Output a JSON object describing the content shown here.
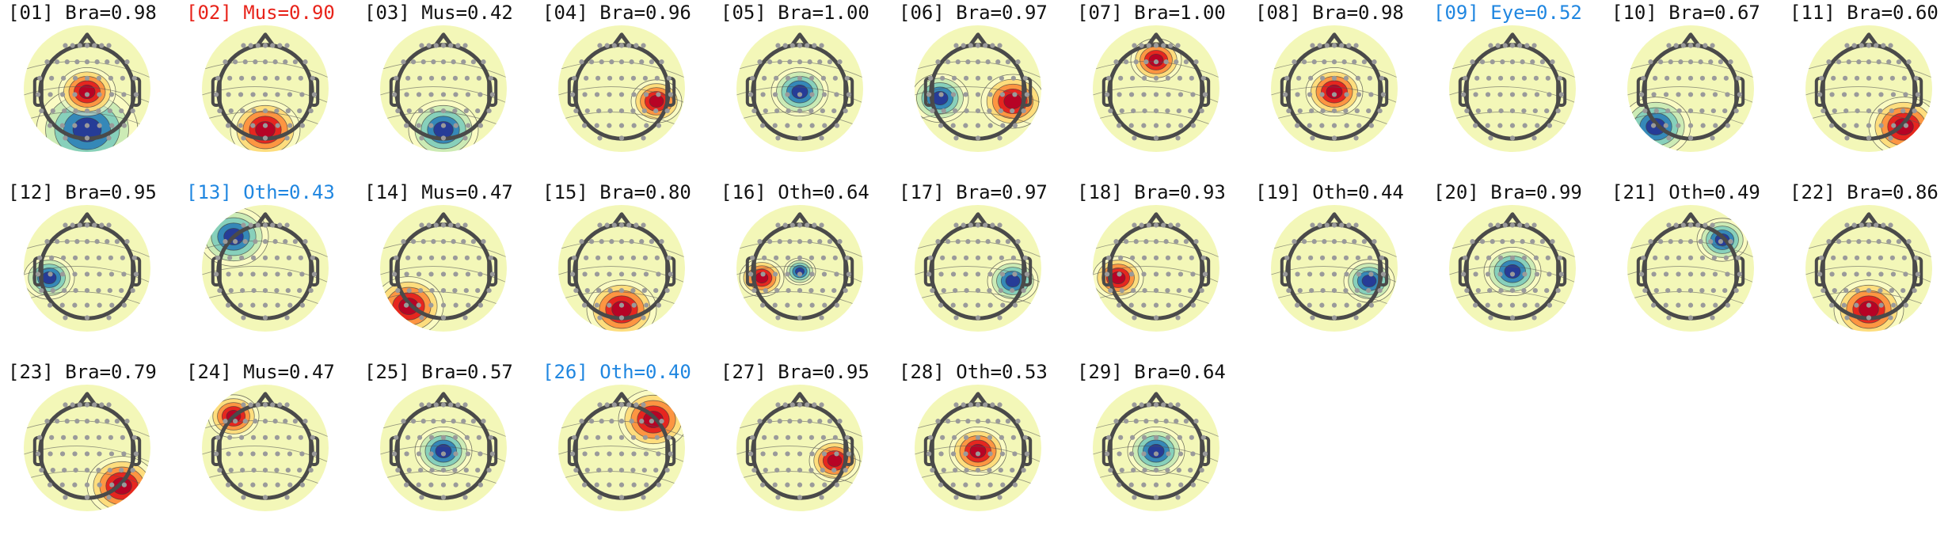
{
  "components": [
    {
      "label": "[01] Bra=0.98",
      "color": "#111111",
      "pattern": {
        "type": "dipole",
        "pos": "center",
        "hot": "center"
      }
    },
    {
      "label": "[02] Mus=0.90",
      "color": "#e8231a",
      "pattern": {
        "type": "edge",
        "side": "bottom",
        "pole": "hot"
      }
    },
    {
      "label": "[03] Mus=0.42",
      "color": "#111111",
      "pattern": {
        "type": "edge",
        "side": "bottom",
        "pole": "cold"
      }
    },
    {
      "label": "[04] Bra=0.96",
      "color": "#111111",
      "pattern": {
        "type": "spot",
        "side": "right",
        "pole": "hot"
      }
    },
    {
      "label": "[05] Bra=1.00",
      "color": "#111111",
      "pattern": {
        "type": "spot",
        "side": "center",
        "pole": "cold"
      }
    },
    {
      "label": "[06] Bra=0.97",
      "color": "#111111",
      "pattern": {
        "type": "lateral",
        "pole": "mixed"
      }
    },
    {
      "label": "[07] Bra=1.00",
      "color": "#111111",
      "pattern": {
        "type": "spot",
        "side": "top",
        "pole": "hot"
      }
    },
    {
      "label": "[08] Bra=0.98",
      "color": "#111111",
      "pattern": {
        "type": "spot",
        "side": "center",
        "pole": "hot"
      }
    },
    {
      "label": "[09] Eye=0.52",
      "color": "#1f86e0",
      "pattern": {
        "type": "flat"
      }
    },
    {
      "label": "[10] Bra=0.67",
      "color": "#111111",
      "pattern": {
        "type": "edge",
        "side": "bottom-left",
        "pole": "cold"
      }
    },
    {
      "label": "[11] Bra=0.60",
      "color": "#111111",
      "pattern": {
        "type": "edge",
        "side": "bottom-right",
        "pole": "hot"
      }
    },
    {
      "label": "[12] Bra=0.95",
      "color": "#111111",
      "pattern": {
        "type": "spot",
        "side": "left",
        "pole": "cold"
      }
    },
    {
      "label": "[13] Oth=0.43",
      "color": "#1f86e0",
      "pattern": {
        "type": "edge",
        "side": "top-left",
        "pole": "cold"
      }
    },
    {
      "label": "[14] Mus=0.47",
      "color": "#111111",
      "pattern": {
        "type": "edge",
        "side": "bottom-left",
        "pole": "hot"
      }
    },
    {
      "label": "[15] Bra=0.80",
      "color": "#111111",
      "pattern": {
        "type": "edge",
        "side": "bottom",
        "pole": "hot"
      }
    },
    {
      "label": "[16] Oth=0.64",
      "color": "#111111",
      "pattern": {
        "type": "spot",
        "side": "left",
        "pole": "mixed"
      }
    },
    {
      "label": "[17] Bra=0.97",
      "color": "#111111",
      "pattern": {
        "type": "spot",
        "side": "right",
        "pole": "cold"
      }
    },
    {
      "label": "[18] Bra=0.93",
      "color": "#111111",
      "pattern": {
        "type": "spot",
        "side": "left",
        "pole": "hot"
      }
    },
    {
      "label": "[19] Oth=0.44",
      "color": "#111111",
      "pattern": {
        "type": "spot",
        "side": "right",
        "pole": "cold"
      }
    },
    {
      "label": "[20] Bra=0.99",
      "color": "#111111",
      "pattern": {
        "type": "spot",
        "side": "center",
        "pole": "cold"
      }
    },
    {
      "label": "[21] Oth=0.49",
      "color": "#111111",
      "pattern": {
        "type": "spot",
        "side": "top-right",
        "pole": "cold"
      }
    },
    {
      "label": "[22] Bra=0.86",
      "color": "#111111",
      "pattern": {
        "type": "edge",
        "side": "bottom",
        "pole": "hot"
      }
    },
    {
      "label": "[23] Bra=0.79",
      "color": "#111111",
      "pattern": {
        "type": "edge",
        "side": "bottom-right",
        "pole": "hot"
      }
    },
    {
      "label": "[24] Mus=0.47",
      "color": "#111111",
      "pattern": {
        "type": "spot",
        "side": "top-left",
        "pole": "hot"
      }
    },
    {
      "label": "[25] Bra=0.57",
      "color": "#111111",
      "pattern": {
        "type": "spot",
        "side": "center",
        "pole": "cold"
      }
    },
    {
      "label": "[26] Oth=0.40",
      "color": "#1f86e0",
      "pattern": {
        "type": "edge",
        "side": "top-right",
        "pole": "hot"
      }
    },
    {
      "label": "[27] Bra=0.95",
      "color": "#111111",
      "pattern": {
        "type": "spot",
        "side": "right",
        "pole": "hot"
      }
    },
    {
      "label": "[28] Oth=0.53",
      "color": "#111111",
      "pattern": {
        "type": "spot",
        "side": "center",
        "pole": "hot"
      }
    },
    {
      "label": "[29] Bra=0.64",
      "color": "#111111",
      "pattern": {
        "type": "spot",
        "side": "center",
        "pole": "cold"
      }
    }
  ]
}
